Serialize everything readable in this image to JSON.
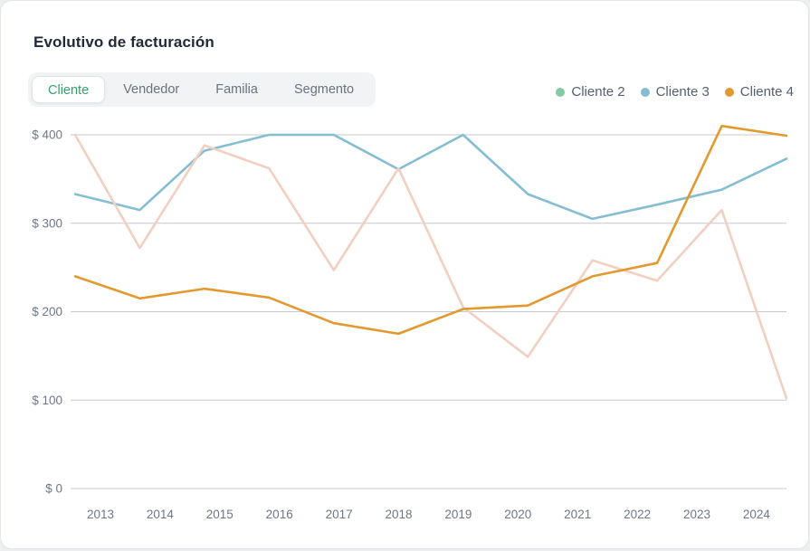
{
  "header": {
    "title": "Evolutivo de facturación"
  },
  "tabs": {
    "active": "Cliente",
    "items": [
      {
        "label": "Cliente",
        "active": true
      },
      {
        "label": "Vendedor",
        "active": false
      },
      {
        "label": "Familia",
        "active": false
      },
      {
        "label": "Segmento",
        "active": false
      }
    ]
  },
  "colors": {
    "tab_active_text": "#2fa36a",
    "axis_text": "#6e7687",
    "grid_line": "#c6c9d2",
    "title_text": "#232937"
  },
  "chart_data": {
    "type": "line",
    "title": "Evolutivo de facturación",
    "categories": [
      "2013",
      "2014",
      "2015",
      "2016",
      "2017",
      "2018",
      "2019",
      "2020",
      "2021",
      "2022",
      "2023",
      "2024"
    ],
    "y_ticks": [
      {
        "value": 0,
        "label": "$ 0"
      },
      {
        "value": 100,
        "label": "$ 100"
      },
      {
        "value": 200,
        "label": "$ 200"
      },
      {
        "value": 300,
        "label": "$ 300"
      },
      {
        "value": 400,
        "label": "$ 400"
      }
    ],
    "ylim": [
      0,
      400
    ],
    "grid": "horizontal",
    "legend_position": "top-right",
    "series": [
      {
        "name": "",
        "in_legend": false,
        "muted": true,
        "color": "#f2cfc1",
        "values": [
          400,
          272,
          388,
          362,
          247,
          362,
          205,
          149,
          258,
          235,
          315,
          102
        ]
      },
      {
        "name": "Cliente 3",
        "in_legend": true,
        "muted": false,
        "color": "#85bdd3",
        "values": [
          333,
          315,
          382,
          400,
          400,
          361,
          400,
          333,
          305,
          321,
          338,
          373
        ]
      },
      {
        "name": "Cliente 4",
        "in_legend": true,
        "muted": false,
        "color": "#e2992f",
        "values": [
          240,
          215,
          226,
          216,
          187,
          175,
          203,
          207,
          240,
          255,
          410,
          399
        ]
      }
    ],
    "legend": [
      {
        "label": "Cliente 2",
        "color": "#82c9a4"
      },
      {
        "label": "Cliente 3",
        "color": "#85bdd3"
      },
      {
        "label": "Cliente 4",
        "color": "#e2992f"
      }
    ]
  }
}
